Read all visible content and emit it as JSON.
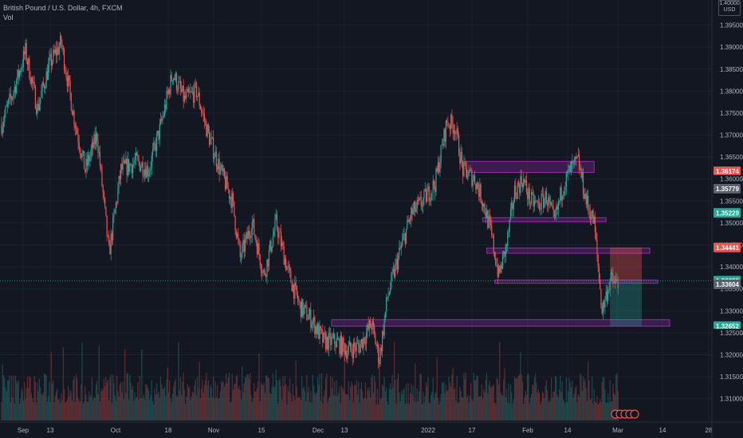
{
  "legend": {
    "symbol": "British Pound / U.S. Dollar, 4h, FXCM",
    "volume_label": "Vol"
  },
  "currency_box": {
    "line1": "1.40000",
    "line2": "USD"
  },
  "colors": {
    "background": "#131722",
    "grid": "#1e222d",
    "up": "#26a69a",
    "down": "#ef5350",
    "zone_fill": "#9c27b0",
    "zone_stroke": "#9c27b0",
    "loss_fill": "#ef5350",
    "profit_fill": "#26a69a",
    "axis_text": "#b2b5be",
    "tag_gray": "#5d606b"
  },
  "chart_data": {
    "type": "candlestick",
    "title": "British Pound / U.S. Dollar, 4h, FXCM",
    "y_range": [
      1.3065,
      1.4
    ],
    "y_ticks": [
      "1.31000",
      "1.31500",
      "1.32000",
      "1.32500",
      "1.33000",
      "1.33500",
      "1.34000",
      "1.34500",
      "1.35000",
      "1.35500",
      "1.36000",
      "1.36500",
      "1.37000",
      "1.37500",
      "1.38000",
      "1.38500",
      "1.39000",
      "1.39500"
    ],
    "x_ticks": [
      "Sep",
      "13",
      "Oct",
      "18",
      "Nov",
      "15",
      "Dec",
      "13",
      "2022",
      "17",
      "Feb",
      "14",
      "Mar",
      "14",
      "28"
    ],
    "price_path": [
      [
        0,
        1.3725
      ],
      [
        3,
        1.38
      ],
      [
        6,
        1.389
      ],
      [
        9,
        1.376
      ],
      [
        12,
        1.386
      ],
      [
        15,
        1.391
      ],
      [
        18,
        1.375
      ],
      [
        21,
        1.362
      ],
      [
        24,
        1.37
      ],
      [
        27,
        1.343
      ],
      [
        30,
        1.362
      ],
      [
        34,
        1.364
      ],
      [
        37,
        1.362
      ],
      [
        40,
        1.372
      ],
      [
        43,
        1.384
      ],
      [
        46,
        1.378
      ],
      [
        49,
        1.38
      ],
      [
        52,
        1.37
      ],
      [
        55,
        1.362
      ],
      [
        58,
        1.355
      ],
      [
        60,
        1.342
      ],
      [
        63,
        1.35
      ],
      [
        66,
        1.338
      ],
      [
        69,
        1.35
      ],
      [
        72,
        1.339
      ],
      [
        75,
        1.331
      ],
      [
        78,
        1.328
      ],
      [
        81,
        1.323
      ],
      [
        84,
        1.323
      ],
      [
        87,
        1.321
      ],
      [
        90,
        1.322
      ],
      [
        93,
        1.327
      ],
      [
        95,
        1.319
      ],
      [
        97,
        1.333
      ],
      [
        100,
        1.343
      ],
      [
        103,
        1.352
      ],
      [
        106,
        1.355
      ],
      [
        109,
        1.359
      ],
      [
        112,
        1.373
      ],
      [
        114,
        1.372
      ],
      [
        116,
        1.362
      ],
      [
        119,
        1.36
      ],
      [
        121,
        1.355
      ],
      [
        123,
        1.348
      ],
      [
        125,
        1.338
      ],
      [
        127,
        1.345
      ],
      [
        129,
        1.357
      ],
      [
        131,
        1.36
      ],
      [
        133,
        1.355
      ],
      [
        135,
        1.354
      ],
      [
        137,
        1.356
      ],
      [
        139,
        1.35
      ],
      [
        141,
        1.358
      ],
      [
        143,
        1.362
      ],
      [
        145,
        1.364
      ],
      [
        147,
        1.355
      ],
      [
        149,
        1.35
      ],
      [
        151,
        1.33
      ],
      [
        153,
        1.337
      ],
      [
        155,
        1.336
      ]
    ],
    "zones": [
      {
        "from": 1.364,
        "to": 1.3615,
        "start": 117,
        "end": 149
      },
      {
        "from": 1.3512,
        "to": 1.3503,
        "start": 121,
        "end": 152
      },
      {
        "from": 1.3443,
        "to": 1.3431,
        "start": 122,
        "end": 163
      },
      {
        "from": 1.337,
        "to": 1.3363,
        "start": 124,
        "end": 165
      },
      {
        "from": 1.328,
        "to": 1.3265,
        "start": 83,
        "end": 168
      }
    ],
    "position": {
      "entry": 1.3368,
      "stop": 1.34441,
      "target": 1.32652,
      "start": 153,
      "end": 161
    },
    "price_tags": [
      {
        "label": "1.36174",
        "value": 1.36174,
        "color": "#ef5350"
      },
      {
        "label": "1.36000",
        "value": 1.36,
        "color": "#131722",
        "plain": true
      },
      {
        "label": "1.35779",
        "value": 1.35779,
        "color": "#5d606b"
      },
      {
        "label": "1.35229",
        "value": 1.35229,
        "color": "#26a69a"
      },
      {
        "label": "1.34441",
        "value": 1.34441,
        "color": "#ef5350"
      },
      {
        "label": "1.33688",
        "value": 1.33688,
        "color": "#26a69a"
      },
      {
        "label": "1.33604",
        "value": 1.33604,
        "color": "#5d606b"
      },
      {
        "label": "1.32652",
        "value": 1.32652,
        "color": "#26a69a"
      },
      {
        "label": "1.32500",
        "value": 1.325,
        "color": "#131722",
        "plain": true
      }
    ],
    "last_price": 1.3368
  }
}
